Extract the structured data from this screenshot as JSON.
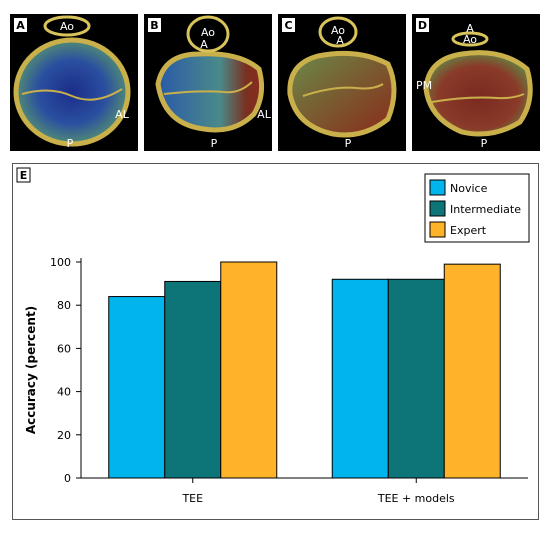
{
  "panels": [
    {
      "letter": "A",
      "labels": {
        "ao": "Ao",
        "al": "AL",
        "p": "P"
      }
    },
    {
      "letter": "B",
      "labels": {
        "ao": "Ao",
        "a": "A",
        "al": "AL",
        "p": "P"
      }
    },
    {
      "letter": "C",
      "labels": {
        "ao": "Ao",
        "a": "A",
        "p": "P"
      }
    },
    {
      "letter": "D",
      "labels": {
        "a": "A",
        "ao": "Ao",
        "pm": "PM",
        "p": "P"
      }
    }
  ],
  "chart_data": {
    "type": "bar",
    "panel_letter": "E",
    "categories": [
      "TEE",
      "TEE + models"
    ],
    "series": [
      {
        "name": "Novice",
        "values": [
          84,
          92
        ],
        "color": "#00b5ec"
      },
      {
        "name": "Intermediate",
        "values": [
          91,
          92
        ],
        "color": "#0d7477"
      },
      {
        "name": "Expert",
        "values": [
          100,
          99
        ],
        "color": "#ffb32a"
      }
    ],
    "ylabel": "Accuracy (percent)",
    "xlabel": "",
    "ylim": [
      0,
      100
    ],
    "yticks": [
      0,
      20,
      40,
      60,
      80,
      100
    ],
    "grid": false,
    "legend_position": "top-right"
  }
}
